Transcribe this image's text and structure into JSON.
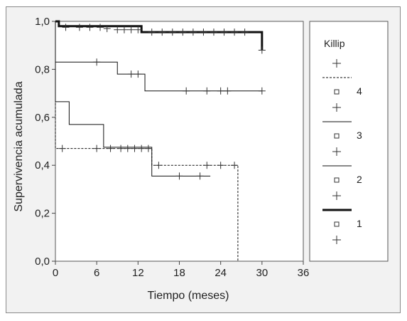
{
  "chart_data": {
    "type": "line",
    "subtype": "kaplan-meier",
    "xlabel": "Tiempo (meses)",
    "ylabel": "Supervivencia acumulada",
    "xlim": [
      0,
      36
    ],
    "ylim": [
      0,
      1
    ],
    "x_ticks": [
      0,
      6,
      12,
      18,
      24,
      30,
      36
    ],
    "x_tick_labels": [
      "0",
      "6",
      "12",
      "18",
      "24",
      "30",
      "36"
    ],
    "y_ticks": [
      0,
      0.2,
      0.4,
      0.6,
      0.8,
      1.0
    ],
    "y_tick_labels": [
      "0,0",
      "0,2",
      "0,4",
      "0,6",
      "0,8",
      "1,0"
    ],
    "grid": false,
    "legend": {
      "title": "Killip",
      "placement": "right",
      "entries": [
        "4",
        "3",
        "2",
        "1"
      ]
    },
    "series": [
      {
        "name": "1",
        "line_style": "thick-solid",
        "steps": [
          [
            0,
            1.0
          ],
          [
            0.5,
            0.98
          ],
          [
            12.5,
            0.955
          ],
          [
            30,
            0.955
          ],
          [
            30,
            0.88
          ]
        ],
        "censored": [
          [
            1.5,
            0.975
          ],
          [
            3.5,
            0.975
          ],
          [
            5,
            0.975
          ],
          [
            6.5,
            0.975
          ],
          [
            7.5,
            0.97
          ],
          [
            9,
            0.965
          ],
          [
            10,
            0.965
          ],
          [
            11,
            0.965
          ],
          [
            12,
            0.965
          ],
          [
            14,
            0.955
          ],
          [
            15.5,
            0.955
          ],
          [
            17,
            0.955
          ],
          [
            18.5,
            0.955
          ],
          [
            20,
            0.955
          ],
          [
            21.5,
            0.955
          ],
          [
            23,
            0.955
          ],
          [
            24.5,
            0.955
          ],
          [
            26,
            0.955
          ],
          [
            27.5,
            0.955
          ],
          [
            30,
            0.88
          ]
        ]
      },
      {
        "name": "2",
        "line_style": "solid",
        "steps": [
          [
            0,
            0.83
          ],
          [
            9,
            0.78
          ],
          [
            13,
            0.71
          ],
          [
            30,
            0.71
          ]
        ],
        "censored": [
          [
            6,
            0.83
          ],
          [
            11,
            0.78
          ],
          [
            12,
            0.78
          ],
          [
            19,
            0.71
          ],
          [
            22,
            0.71
          ],
          [
            24,
            0.71
          ],
          [
            25,
            0.71
          ],
          [
            30,
            0.71
          ]
        ]
      },
      {
        "name": "3",
        "line_style": "solid",
        "steps": [
          [
            0,
            0.665
          ],
          [
            2,
            0.57
          ],
          [
            7,
            0.475
          ],
          [
            14,
            0.355
          ],
          [
            22.5,
            0.355
          ]
        ],
        "censored": [
          [
            8,
            0.47
          ],
          [
            9.5,
            0.47
          ],
          [
            10.5,
            0.47
          ],
          [
            11.5,
            0.47
          ],
          [
            12.5,
            0.47
          ],
          [
            13.5,
            0.47
          ],
          [
            18,
            0.355
          ],
          [
            21,
            0.355
          ]
        ]
      },
      {
        "name": "4",
        "line_style": "dashed",
        "steps": [
          [
            0,
            0.47
          ],
          [
            14,
            0.4
          ],
          [
            26.5,
            0.4
          ],
          [
            26.5,
            0.0
          ]
        ],
        "censored": [
          [
            1,
            0.47
          ],
          [
            6,
            0.47
          ],
          [
            15,
            0.4
          ],
          [
            22,
            0.4
          ],
          [
            24,
            0.4
          ],
          [
            26,
            0.4
          ]
        ]
      }
    ]
  }
}
